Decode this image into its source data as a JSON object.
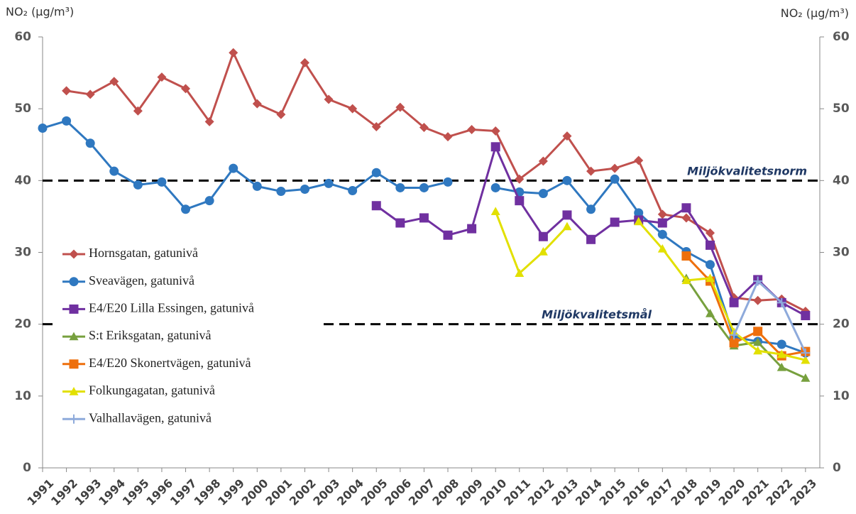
{
  "chart_data": {
    "type": "line",
    "y_label": "NO₂ (µg/m³)",
    "y2_label": "NO₂ (µg/m³)",
    "x": [
      1991,
      1992,
      1993,
      1994,
      1995,
      1996,
      1997,
      1998,
      1999,
      2000,
      2001,
      2002,
      2003,
      2004,
      2005,
      2006,
      2007,
      2008,
      2009,
      2010,
      2011,
      2012,
      2013,
      2014,
      2015,
      2016,
      2017,
      2018,
      2019,
      2020,
      2021,
      2022,
      2023
    ],
    "xlim": [
      1991,
      2023.6
    ],
    "xticks": [
      1991,
      1992,
      1993,
      1994,
      1995,
      1996,
      1997,
      1998,
      1999,
      2000,
      2001,
      2002,
      2003,
      2004,
      2005,
      2006,
      2007,
      2008,
      2009,
      2010,
      2011,
      2012,
      2013,
      2014,
      2015,
      2016,
      2017,
      2018,
      2019,
      2020,
      2021,
      2022,
      2023
    ],
    "ylim": [
      0,
      60
    ],
    "yticks": [
      0,
      10,
      20,
      30,
      40,
      50,
      60
    ],
    "y2lim": [
      0,
      60
    ],
    "y2ticks": [
      0,
      10,
      20,
      30,
      40,
      50,
      60
    ],
    "grid": false,
    "reference_lines": [
      {
        "value": 40,
        "label": "Miljökvalitetsnorm"
      },
      {
        "value": 20,
        "label": "Miljökvalitetsmål"
      }
    ],
    "series": [
      {
        "name": "Hornsgatan, gatunivå",
        "color": "#c0504d",
        "marker": "diamond",
        "values": [
          null,
          52.5,
          52.0,
          53.8,
          49.7,
          54.4,
          52.8,
          48.2,
          57.8,
          50.7,
          49.2,
          56.4,
          51.3,
          50.0,
          47.5,
          50.2,
          47.4,
          46.1,
          47.1,
          46.9,
          40.2,
          42.7,
          46.2,
          41.3,
          41.7,
          42.8,
          35.3,
          34.8,
          32.7,
          23.7,
          23.3,
          23.5,
          21.8
        ]
      },
      {
        "name": "Sveavägen, gatunivå",
        "color": "#2f78c0",
        "marker": "circle",
        "values": [
          47.3,
          48.3,
          45.2,
          41.3,
          39.4,
          39.8,
          36.0,
          37.2,
          41.7,
          39.2,
          38.5,
          38.8,
          39.6,
          38.6,
          41.1,
          39.0,
          39.0,
          39.8,
          null,
          39.0,
          38.4,
          38.2,
          40.0,
          36.0,
          40.2,
          35.5,
          32.5,
          30.1,
          28.3,
          18.2,
          17.6,
          17.2,
          16.0
        ]
      },
      {
        "name": "E4/E20 Lilla Essingen, gatunivå",
        "color": "#7030a0",
        "marker": "square",
        "values": [
          null,
          null,
          null,
          null,
          null,
          null,
          null,
          null,
          null,
          null,
          null,
          null,
          null,
          null,
          36.5,
          34.1,
          34.8,
          32.4,
          33.3,
          44.7,
          37.2,
          32.2,
          35.2,
          31.8,
          34.2,
          34.5,
          34.1,
          36.2,
          31.0,
          23.0,
          26.2,
          23.0,
          21.2
        ]
      },
      {
        "name": "S:t Eriksgatan, gatunivå",
        "color": "#77a03e",
        "marker": "triangle",
        "values": [
          null,
          null,
          null,
          null,
          null,
          null,
          null,
          null,
          null,
          null,
          null,
          null,
          null,
          null,
          null,
          null,
          null,
          null,
          null,
          null,
          null,
          null,
          null,
          null,
          null,
          null,
          null,
          26.4,
          21.5,
          17.0,
          17.5,
          14.0,
          12.5
        ]
      },
      {
        "name": "E4/E20 Skonertvägen, gatunivå",
        "color": "#ee6f0c",
        "marker": "square",
        "values": [
          null,
          null,
          null,
          null,
          null,
          null,
          null,
          null,
          null,
          null,
          null,
          null,
          null,
          null,
          null,
          null,
          null,
          null,
          null,
          null,
          null,
          null,
          null,
          null,
          null,
          null,
          null,
          29.5,
          26.0,
          17.4,
          19.0,
          15.6,
          16.2
        ]
      },
      {
        "name": "Folkungagatan, gatunivå",
        "color": "#e2e000",
        "marker": "triangle",
        "values": [
          null,
          null,
          null,
          null,
          null,
          null,
          null,
          null,
          null,
          null,
          null,
          null,
          null,
          null,
          null,
          null,
          null,
          null,
          null,
          35.7,
          27.1,
          30.1,
          33.6,
          null,
          null,
          34.3,
          30.5,
          26.1,
          26.4,
          18.9,
          16.3,
          15.8,
          15.0
        ]
      },
      {
        "name": "Valhallavägen, gatunivå",
        "color": "#8eaadb",
        "marker": "plus",
        "values": [
          null,
          null,
          null,
          null,
          null,
          null,
          null,
          null,
          null,
          null,
          null,
          null,
          null,
          null,
          null,
          null,
          null,
          null,
          null,
          null,
          null,
          null,
          null,
          null,
          null,
          null,
          null,
          null,
          null,
          18.5,
          26.0,
          23.0,
          16.0
        ]
      }
    ]
  }
}
